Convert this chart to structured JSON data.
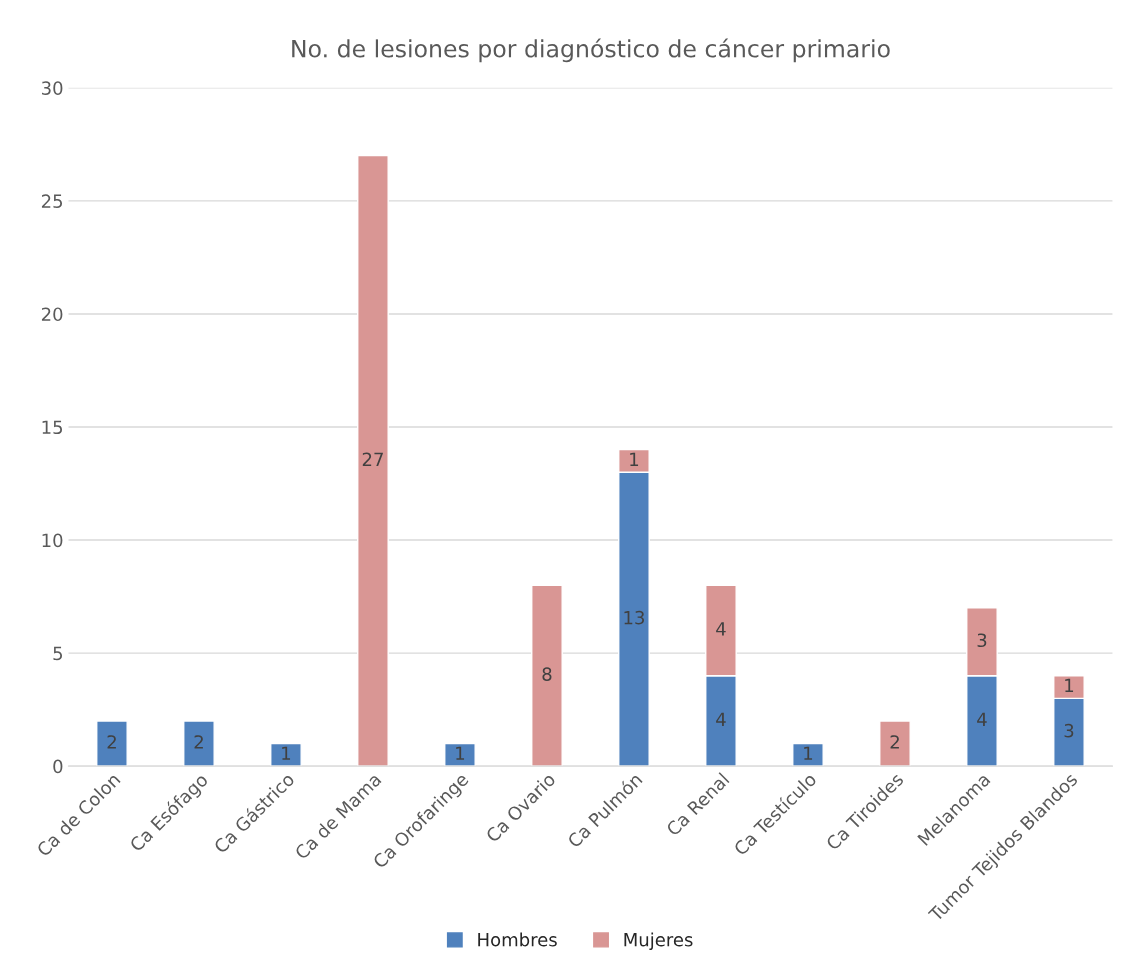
{
  "chart_data": {
    "type": "bar",
    "title": "No. de lesiones por diagnóstico de cáncer primario",
    "categories": [
      "Ca de Colon",
      "Ca Esófago",
      "Ca Gástrico",
      "Ca de Mama",
      "Ca Orofaringe",
      "Ca Ovario",
      "Ca Pulmón",
      "Ca Renal",
      "Ca Testículo",
      "Ca Tiroides",
      "Melanoma",
      "Tumor Tejidos Blandos"
    ],
    "series": [
      {
        "name": "Hombres",
        "color": "#4f81bd",
        "values": [
          2,
          2,
          1,
          null,
          1,
          null,
          13,
          4,
          1,
          null,
          4,
          3
        ]
      },
      {
        "name": "Mujeres",
        "color": "#d99694",
        "values": [
          null,
          null,
          null,
          27,
          null,
          8,
          1,
          4,
          null,
          2,
          3,
          1
        ]
      }
    ],
    "stacked": true,
    "data_labels": true,
    "ylim": [
      0,
      30
    ],
    "yticks": [
      0,
      5,
      10,
      15,
      20,
      25,
      30
    ],
    "grid": "y",
    "legend": "bottom"
  }
}
